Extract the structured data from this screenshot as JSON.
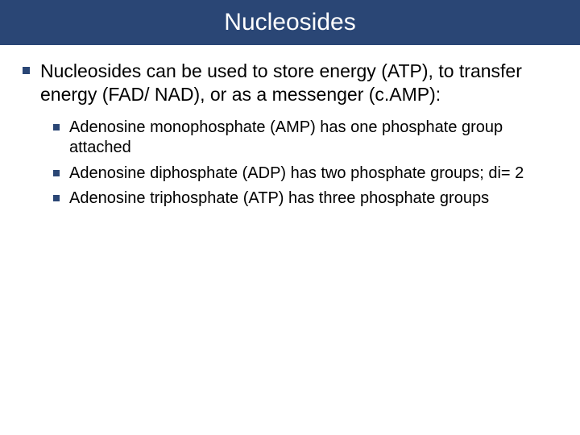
{
  "title": "Nucleosides",
  "title_bg_color": "#2a4675",
  "bullet_color": "#2a4675",
  "title_fontsize": 30,
  "body_fontsize": 23,
  "sub_fontsize": 20,
  "main_bullets": [
    {
      "text": "Nucleosides can be used to store energy (ATP), to transfer energy (FAD/ NAD), or as a messenger (c.AMP):",
      "sub": [
        "Adenosine monophosphate (AMP) has one phosphate group attached",
        "Adenosine diphosphate (ADP) has two phosphate groups; di= 2",
        "Adenosine triphosphate (ATP) has three phosphate groups"
      ]
    }
  ]
}
